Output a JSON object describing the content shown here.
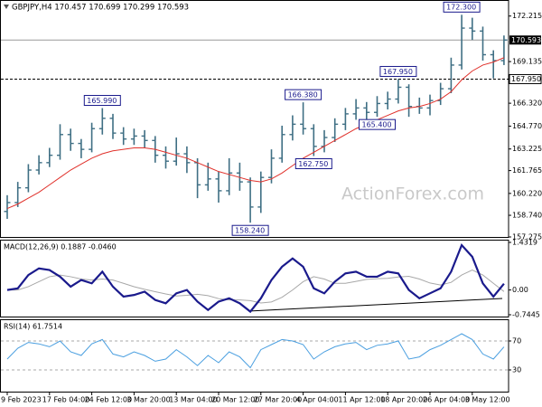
{
  "chart_data": {
    "type": "ohlc",
    "title": "GBPJPY,H4 170.457 170.699 170.299 170.593",
    "watermark": "ActionForex.com",
    "bar_color": "#3f6f84",
    "ma_color": "#e0302a",
    "ylim": [
      157.275,
      173.3
    ],
    "yticks": [
      172.215,
      169.135,
      {
        "value": 166.32,
        "label": "166.320"
      },
      {
        "value": 164.77,
        "label": "164.770"
      },
      163.225,
      161.765,
      {
        "value": 160.22,
        "label": "160.220"
      },
      {
        "value": 158.74,
        "label": "158.740"
      },
      157.275
    ],
    "last": {
      "value": 170.593,
      "label": "170.593"
    },
    "level": {
      "value": 167.95,
      "label": "167.950"
    },
    "annotations": [
      {
        "value": 165.99,
        "label": "165.990"
      },
      {
        "value": 158.24,
        "label": "158.240"
      },
      {
        "value": 166.38,
        "label": "166.380"
      },
      {
        "value": 162.75,
        "label": "162.750"
      },
      {
        "value": 167.95,
        "label": "167.950"
      },
      {
        "value": 165.4,
        "label": "165.400"
      },
      {
        "value": 172.3,
        "label": "172.300"
      }
    ],
    "x_labels": [
      "9 Feb 2023",
      "17 Feb 04:00",
      "24 Feb 12:00",
      "3 Mar 20:00",
      "13 Mar 04:00",
      "20 Mar 12:00",
      "27 Mar 20:00",
      "4 Apr 04:00",
      "11 Apr 12:00",
      "18 Apr 20:00",
      "26 Apr 04:00",
      "3 May 12:00"
    ],
    "open": [
      159.0,
      159.6,
      160.6,
      161.8,
      162.3,
      162.8,
      164.2,
      163.6,
      163.2,
      164.6,
      165.3,
      164.3,
      163.9,
      164.1,
      163.8,
      162.8,
      162.4,
      162.9,
      162.3,
      160.8,
      161.2,
      160.4,
      161.6,
      161.0,
      159.3,
      161.3,
      162.6,
      164.2,
      164.9,
      164.6,
      163.4,
      164.0,
      164.9,
      165.6,
      166.0,
      165.7,
      166.3,
      166.6,
      167.4,
      166.1,
      166.0,
      166.5,
      167.3,
      168.9,
      171.4,
      171.2,
      169.6,
      169.2
    ],
    "high": [
      160.1,
      161.0,
      162.2,
      162.8,
      163.3,
      164.9,
      164.6,
      163.9,
      165.0,
      165.99,
      165.6,
      164.7,
      164.6,
      164.5,
      164.1,
      163.4,
      164.0,
      163.4,
      162.6,
      162.3,
      161.7,
      162.6,
      162.3,
      161.3,
      161.7,
      163.2,
      164.8,
      165.5,
      166.38,
      164.9,
      164.5,
      165.3,
      166.0,
      166.6,
      166.4,
      166.8,
      167.1,
      167.95,
      167.6,
      166.7,
      166.9,
      167.7,
      169.4,
      172.3,
      172.1,
      171.5,
      169.9,
      170.9
    ],
    "low": [
      158.5,
      159.3,
      160.3,
      161.5,
      162.0,
      162.5,
      163.1,
      162.6,
      163.0,
      164.2,
      163.9,
      163.5,
      163.5,
      163.3,
      162.3,
      161.9,
      162.1,
      161.6,
      159.9,
      160.4,
      159.6,
      160.1,
      160.4,
      158.24,
      158.9,
      160.9,
      162.3,
      163.8,
      164.2,
      162.75,
      163.0,
      163.7,
      164.5,
      165.2,
      165.2,
      165.4,
      165.9,
      166.3,
      165.4,
      165.6,
      165.5,
      166.2,
      167.0,
      168.6,
      170.6,
      169.2,
      168.0,
      168.9
    ],
    "close": [
      159.6,
      160.6,
      161.8,
      162.3,
      162.8,
      164.2,
      163.6,
      163.2,
      164.6,
      165.3,
      164.3,
      163.9,
      164.1,
      163.8,
      162.8,
      162.4,
      162.9,
      162.3,
      160.8,
      161.2,
      160.4,
      161.6,
      161.0,
      159.3,
      161.3,
      162.6,
      164.2,
      164.9,
      164.6,
      163.4,
      164.0,
      164.9,
      165.6,
      166.0,
      165.7,
      166.3,
      166.6,
      167.4,
      166.1,
      166.0,
      166.5,
      167.3,
      168.9,
      171.4,
      171.2,
      169.6,
      169.2,
      170.593
    ],
    "ma": [
      159.2,
      159.5,
      159.9,
      160.3,
      160.8,
      161.3,
      161.8,
      162.2,
      162.6,
      162.9,
      163.1,
      163.2,
      163.3,
      163.3,
      163.2,
      163.0,
      162.8,
      162.6,
      162.3,
      162.0,
      161.7,
      161.5,
      161.3,
      161.1,
      161.0,
      161.2,
      161.6,
      162.1,
      162.6,
      163.0,
      163.4,
      163.8,
      164.2,
      164.6,
      164.9,
      165.2,
      165.5,
      165.8,
      166.0,
      166.1,
      166.3,
      166.6,
      167.1,
      167.9,
      168.5,
      168.9,
      169.1,
      169.4
    ],
    "macd": {
      "title": "MACD(12,26,9) 0.1887 -0.0460",
      "color": "#1a1a8c",
      "signal_color": "#a8a8a8",
      "ylim": [
        -0.7445,
        1.4319
      ],
      "yticks": [
        1.4319,
        {
          "value": 0,
          "label": "0.00"
        },
        -0.7445
      ],
      "values": [
        0,
        0.05,
        0.45,
        0.65,
        0.6,
        0.4,
        0.1,
        0.3,
        0.2,
        0.55,
        0.1,
        -0.2,
        -0.15,
        -0.05,
        -0.3,
        -0.4,
        -0.1,
        0,
        -0.35,
        -0.6,
        -0.35,
        -0.25,
        -0.4,
        -0.65,
        -0.25,
        0.3,
        0.7,
        0.95,
        0.7,
        0.05,
        -0.1,
        0.25,
        0.5,
        0.55,
        0.4,
        0.4,
        0.55,
        0.5,
        0,
        -0.25,
        -0.1,
        0.05,
        0.55,
        1.35,
        1.0,
        0.2,
        -0.2,
        0.1887
      ],
      "signal": [
        0,
        0,
        0.1,
        0.25,
        0.4,
        0.45,
        0.4,
        0.33,
        0.3,
        0.33,
        0.3,
        0.2,
        0.1,
        0.02,
        -0.05,
        -0.12,
        -0.18,
        -0.16,
        -0.13,
        -0.17,
        -0.26,
        -0.3,
        -0.3,
        -0.32,
        -0.39,
        -0.36,
        -0.22,
        0,
        0.25,
        0.4,
        0.33,
        0.2,
        0.2,
        0.26,
        0.32,
        0.34,
        0.35,
        0.39,
        0.41,
        0.33,
        0.21,
        0.15,
        0.23,
        0.45,
        0.6,
        0.45,
        0.2,
        -0.046
      ]
    },
    "rsi": {
      "title": "RSI(14) 61.7514",
      "color": "#4a9fe0",
      "ylim": [
        0,
        100
      ],
      "yticks": [
        70,
        30
      ],
      "values": [
        45,
        60,
        68,
        66,
        62,
        70,
        55,
        50,
        66,
        72,
        52,
        48,
        55,
        50,
        42,
        45,
        58,
        48,
        36,
        50,
        40,
        55,
        48,
        33,
        58,
        65,
        72,
        70,
        65,
        45,
        55,
        62,
        66,
        68,
        58,
        64,
        66,
        70,
        45,
        48,
        58,
        64,
        72,
        80,
        72,
        52,
        45,
        61.7514
      ]
    }
  }
}
